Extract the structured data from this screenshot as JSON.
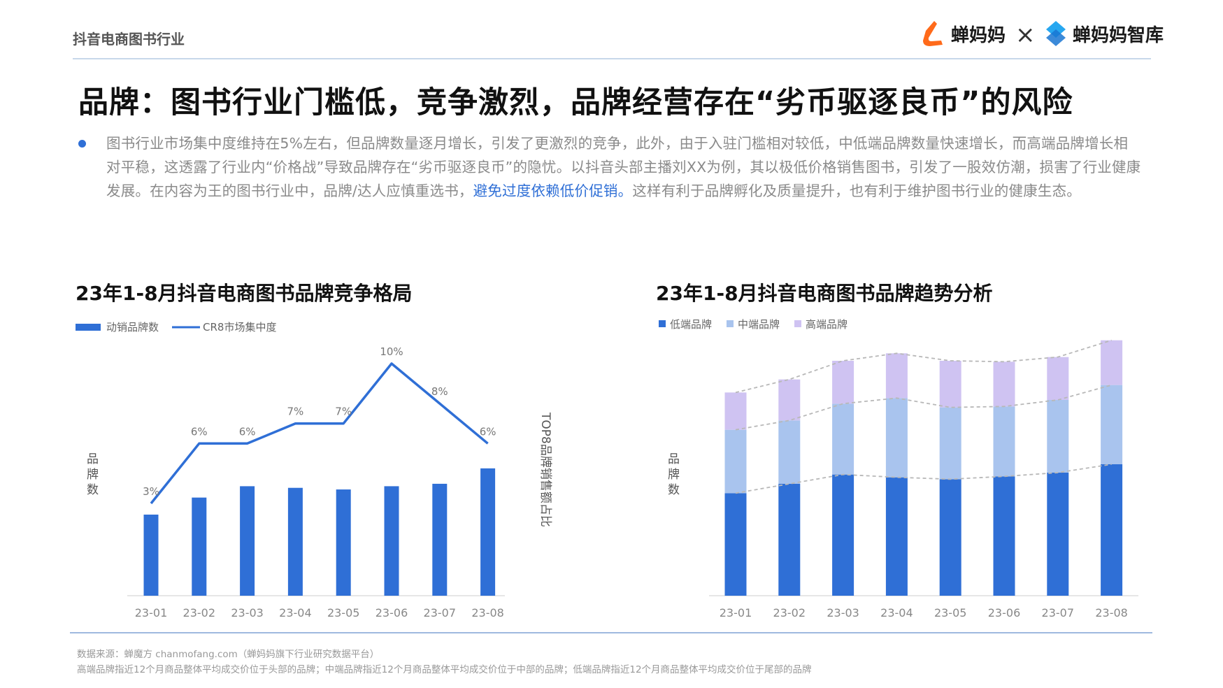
{
  "header": {
    "section": "抖音电商图书行业",
    "logo_left": "蝉妈妈",
    "times": "×",
    "logo_right": "蝉妈妈智库"
  },
  "title": "品牌：图书行业门槛低，竞争激烈，品牌经营存在“劣币驱逐良币”的风险",
  "paragraph": {
    "text_a": "图书行业市场集中度维持在5%左右，但品牌数量逐月增长，引发了更激烈的竞争，此外，由于入驻门槛相对较低，中低端品牌数量快速增长，而高端品牌增长相对平稳，这透露了行业内“价格战”导致品牌存在“劣币驱逐良币”的隐忧。以抖音头部主播刘XX为例，其以极低价格销售图书，引发了一股效仿潮，损害了行业健康发展。在内容为王的图书行业中，品牌/达人应慎重选书，",
    "highlight": "避免过度依赖低价促销。",
    "text_b": "这样有利于品牌孵化及质量提升，也有利于维护图书行业的健康生态。"
  },
  "colors": {
    "primary": "#2f6fd6",
    "mid": "#a9c4ee",
    "high": "#cfc3f2"
  },
  "chart_data": [
    {
      "type": "bar",
      "title": "23年1-8月抖音电商图书品牌竞争格局",
      "categories": [
        "23-01",
        "23-02",
        "23-03",
        "23-04",
        "23-05",
        "23-06",
        "23-07",
        "23-08"
      ],
      "ylabel": "品牌数",
      "y2label": "TOP8品牌销售额占比",
      "legend_placement": "top-left",
      "grid": false,
      "series": [
        {
          "name": "动销品牌数",
          "type": "bar",
          "values": [
            100,
            121,
            135,
            133,
            131,
            135,
            138,
            157
          ]
        },
        {
          "name": "CR8市场集中度",
          "type": "line",
          "values": [
            3,
            6,
            6,
            7,
            7,
            10,
            8,
            6
          ],
          "labels": [
            "3%",
            "6%",
            "6%",
            "7%",
            "7%",
            "10%",
            "8%",
            "6%"
          ]
        }
      ]
    },
    {
      "type": "bar",
      "stacked": true,
      "title": "23年1-8月抖音电商图书品牌趋势分析",
      "categories": [
        "23-01",
        "23-02",
        "23-03",
        "23-04",
        "23-05",
        "23-06",
        "23-07",
        "23-08"
      ],
      "ylabel": "品牌数",
      "legend_placement": "top-left",
      "grid": false,
      "series": [
        {
          "name": "低端品牌",
          "values": [
            110,
            120,
            130,
            127,
            125,
            128,
            132,
            141
          ]
        },
        {
          "name": "中端品牌",
          "values": [
            68,
            68,
            76,
            85,
            77,
            75,
            78,
            85
          ]
        },
        {
          "name": "高端品牌",
          "values": [
            40,
            44,
            46,
            48,
            50,
            48,
            46,
            48
          ]
        }
      ]
    }
  ],
  "footer": {
    "source": "数据来源：蝉魔方 chanmofang.com（蝉妈妈旗下行业研究数据平台）",
    "note": "高端品牌指近12个月商品整体平均成交价位于头部的品牌；中端品牌指近12个月商品整体平均成交价位于中部的品牌；低端品牌指近12个月商品整体平均成交价位于尾部的品牌"
  }
}
